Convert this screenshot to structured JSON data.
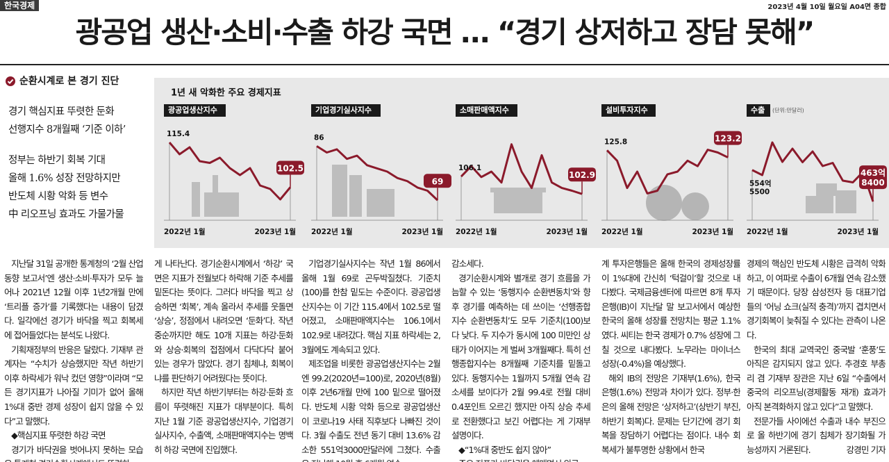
{
  "header": {
    "logo": "한국경제",
    "date": "2023년 4월 10일 월요일 A04면 종합",
    "headline": "광공업 생산·소비·수출 하강 국면 … “경기 상저하고 장담 못해”"
  },
  "sidebar": {
    "title": "순환시계로 본 경기 진단",
    "subheads": [
      [
        "경기 핵심지표 뚜렷한 둔화",
        "선행지수 8개월째 ‘기준 이하’"
      ],
      [
        "정부는 하반기 회복 기대",
        "올해 1.6% 성장 전망하지만",
        "반도체 시황 악화 등 변수",
        "中 리오프닝 효과도 가물가물"
      ]
    ]
  },
  "infographic": {
    "title": "1년 새 악화한 주요 경제지표",
    "panels": [
      {
        "label": "광공업생산지수",
        "start_label": "115.4",
        "end_label": "102.5",
        "x_labels": [
          "2022년 1월",
          "2023년 1월"
        ],
        "values": [
          115.4,
          112,
          114,
          110,
          109.5,
          111,
          108,
          106,
          108,
          103,
          102,
          99,
          102.5
        ],
        "ylim": [
          96,
          118
        ]
      },
      {
        "label": "기업경기실사지수",
        "start_label": "86",
        "end_label": "69",
        "x_labels": [
          "2022년 1월",
          "2023년 1월"
        ],
        "values": [
          86,
          84,
          85,
          82,
          83,
          80,
          79,
          78,
          76,
          75,
          73,
          72,
          69
        ],
        "ylim": [
          66,
          90
        ]
      },
      {
        "label": "소매판매액지수",
        "start_label": "106.1",
        "end_label": "102.9",
        "x_labels": [
          "2022년 1월",
          "2023년 1월"
        ],
        "values": [
          106.1,
          108,
          106,
          107,
          105,
          112,
          107,
          104,
          110,
          105,
          104,
          103.5,
          102.9
        ],
        "ylim": [
          100,
          114
        ]
      },
      {
        "label": "설비투자지수",
        "start_label": "125.8",
        "end_label": "123.2",
        "x_labels": [
          "2022년 1월",
          "2023년 1월"
        ],
        "values": [
          125.8,
          122,
          112,
          118,
          110,
          111,
          117,
          118,
          122,
          120,
          126,
          125,
          123.2
        ],
        "ylim": [
          104,
          132
        ]
      },
      {
        "label": "수출",
        "unit": "(단위:만달러)",
        "start_label": [
          "554억",
          "5500"
        ],
        "end_label": [
          "463억",
          "8400"
        ],
        "x_labels": [
          "2022년 1월",
          "2023년 1월"
        ],
        "values": [
          5545500,
          5400000,
          6340000,
          5780000,
          6160000,
          5770000,
          6080000,
          5660000,
          5750000,
          5240000,
          5190000,
          5490000,
          4638400
        ],
        "ylim": [
          4400000,
          6600000
        ]
      }
    ]
  },
  "article": {
    "columns": [
      [
        "지난달 31일 공개한 통계청의 ‘2월 산업동향 보고서’엔 생산·소비·투자가 모두 늘어나 2021년 12월 이후 1년2개월 만에 ‘트리플 증가’를 기록했다는 내용이 담겼다. 일각에선 경기가 바닥을 찍고 회복세에 접어들었다는 분석도 나왔다.",
        "기획재정부의 반응은 달랐다. 기재부 관계자는 “수치가 상승했지만 작년 하반기 이후 하락세가 워낙 컸던 영향”이라며 “모든 경기지표가 나아질 기미가 없어 올해 1%대 중반 경제 성장이 쉽지 않을 수 있다”고 말했다.",
        "◆핵심지표 뚜렷한 하강 국면",
        "경기가 바닥권을 벗어나지 못하는 모습은 통계청 경기순환시계에서도 뚜렷하"
      ],
      [
        "게 나타난다. 경기순환시계에서 ‘하강’ 국면은 지표가 전월보다 하락해 기준 추세를 밑돈다는 뜻이다. 그러다 바닥을 찍고 상승하면 ‘회복’, 계속 올라서 추세를 웃돌면 ‘상승’, 정점에서 내려오면 ‘둔화’다. 작년 중순까지만 해도 10개 지표는 하강·둔화와 상승·회복의 접점에서 다닥다닥 붙어 있는 경우가 많았다. 경기 침체냐, 회복이냐를 판단하기 어려웠다는 뜻이다.",
        "하지만 작년 하반기부터는 하강·둔화 흐름이 뚜렷해진 지표가 대부분이다. 특히 지난 1월 기준 광공업생산지수, 기업경기실사지수, 수출액, 소매판매액지수는 명백히 하강 국면에 진입했다."
      ],
      [
        "기업경기실사지수는 작년 1월 86에서 올해 1월 69로 곤두박질쳤다. 기준치(100)를 한참 밑도는 수준이다. 광공업생산지수는 이 기간 115.4에서 102.5로 떨어졌고, 소매판매액지수는 106.1에서 102.9로 내려갔다. 핵심 지표 하락세는 2, 3월에도 계속되고 있다.",
        "제조업을 비롯한 광공업생산지수는 2월엔 99.2(2020년=100)로, 2020년(8월) 이후 2년6개월 만에 100 밑으로 떨어졌다. 반도체 시황 악화 등으로 광공업생산이 코로나19 사태 직후보다 나빠진 것이다. 3월 수출도 전년 동기 대비 13.6% 감소한 551억3000만달러에 그쳤다. 수출은 지난해 10월 후 6개월 연속"
      ],
      [
        "감소세다.",
        "경기순환시계와 별개로 경기 흐름을 가늠할 수 있는 ‘동행지수 순환변동치’와 향후 경기를 예측하는 데 쓰이는 ‘선행종합지수 순환변동치’도 모두 기준치(100)보다 낮다. 두 지수가 동시에 100 미만인 상태가 이어지는 게 벌써 3개월째다. 특히 선행종합지수는 8개월째 기준치를 밑돌고 있다. 동행지수는 1월까지 5개월 연속 감소세를 보이다가 2월 99.4로 전월 대비 0.4포인트 오르긴 했지만 아직 상승 추세로 전환했다고 보긴 어렵다는 게 기재부 설명이다.",
        "◆“1%대 중반도 쉽지 않아”",
        "주요 지표가 바닥권을 헤매면서 외국"
      ],
      [
        "계 투자은행들은 올해 한국의 경제성장률이 1%대에 간신히 ‘턱걸이’할 것으로 내다봤다. 국제금융센터에 따르면 8개 투자은행(IB)이 지난달 말 보고서에서 예상한 한국의 올해 성장률 전망치는 평균 1.1%였다. 씨티는 한국 경제가 0.7% 성장에 그칠 것으로 내다봤다. 노무라는 마이너스 성장(-0.4%)을 예상했다.",
        "해외 IB의 전망은 기재부(1.6%), 한국은행(1.6%) 전망과 차이가 있다. 정부·한은의 올해 전망은 ‘상저하고’(상반기 부진, 하반기 회복)다. 문제는 단기간에 경기 회복을 장담하기 어렵다는 점이다. 내수 회복세가 불투명한 상황에서 한국"
      ],
      [
        "경제의 핵심인 반도체 시황은 급격히 악화하고, 이 여파로 수출이 6개월 연속 감소했기 때문이다. 당장 삼성전자 등 대표기업들의 ‘어닝 쇼크(실적 충격)’까지 겹치면서 경기회복이 늦춰질 수 있다는 관측이 나온다.",
        "한국의 최대 교역국인 중국발 ‘훈풍’도 아직은 감지되지 않고 있다. 추경호 부총리 겸 기재부 장관은 지난 6일 “수출에서 중국의 리오프닝(경제활동 재개) 효과가 아직 본격화하지 않고 있다”고 말했다.",
        "전문가들 사이에선 수출과 내수 부진으로 올 하반기에 경기 침체가 장기화될 가능성까지 거론된다."
      ]
    ],
    "byline": "강경민 기자"
  }
}
